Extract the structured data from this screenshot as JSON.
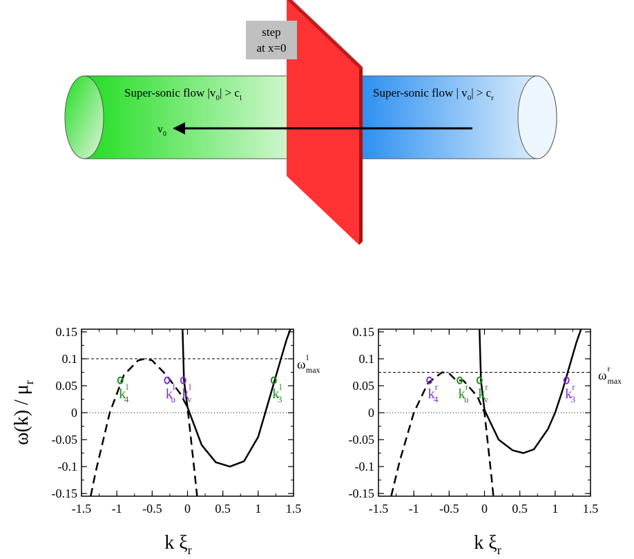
{
  "diagram": {
    "step_label_line1": "step",
    "step_label_line2": "at x=0",
    "left_flow_text": "Super-sonic flow |v",
    "left_flow_sub": "0",
    "left_flow_tail": "| > c",
    "left_flow_tail_sub": "l",
    "right_flow_text": "Super-sonic flow  | v",
    "right_flow_sub": "0",
    "right_flow_tail": "| > c",
    "right_flow_tail_sub": "r",
    "velocity_label": "v",
    "velocity_sub": "0",
    "colors": {
      "left_tube": "#22dd22",
      "right_tube": "#2a8ff0",
      "step": "#ff3333",
      "step_label_bg": "#c0c0c0"
    }
  },
  "chart_data": [
    {
      "type": "line",
      "panel": "left",
      "ylabel": "ω(k) / μ",
      "ylabel_sub": "r",
      "xlabel": "k ξ",
      "xlabel_sub": "r",
      "xlim": [
        -1.5,
        1.5
      ],
      "ylim": [
        -0.155,
        0.155
      ],
      "xticks": [
        "-1.5",
        "-1",
        "-0.5",
        "0",
        "0.5",
        "1",
        "1.5"
      ],
      "yticks": [
        "-0.15",
        "-0.1",
        "-0.05",
        "0",
        "0.05",
        "0.1",
        "0.15"
      ],
      "omega_max": 0.1,
      "omega_max_label": "ω",
      "omega_max_sup": "l",
      "omega_max_sub": "max",
      "omega_line_value": 0.06,
      "series": [
        {
          "style": "solid",
          "x": [
            -0.07,
            -0.05,
            0,
            0.2,
            0.4,
            0.6,
            0.8,
            1.0,
            1.1,
            1.2,
            1.3,
            1.4,
            1.47
          ],
          "y": [
            0.155,
            0.06,
            0.01,
            -0.06,
            -0.092,
            -0.1,
            -0.09,
            -0.045,
            0.0,
            0.045,
            0.09,
            0.135,
            0.16
          ]
        },
        {
          "style": "dashed",
          "x": [
            -1.37,
            -1.3,
            -1.1,
            -0.9,
            -0.7,
            -0.6,
            -0.5,
            -0.3,
            -0.1,
            0.0,
            0.05,
            0.1,
            0.14
          ],
          "y": [
            -0.155,
            -0.11,
            0.0,
            0.07,
            0.097,
            0.1,
            0.097,
            0.07,
            0.035,
            0.01,
            -0.05,
            -0.11,
            -0.16
          ]
        }
      ],
      "points": [
        {
          "x": -0.95,
          "y": 0.06,
          "label": "k",
          "sub": "4",
          "sup": "l",
          "color": "#1e8c1e"
        },
        {
          "x": -0.29,
          "y": 0.06,
          "label": "k",
          "sub": "u",
          "sup": "l",
          "color": "#7d2fd0"
        },
        {
          "x": -0.06,
          "y": 0.06,
          "label": "k",
          "sub": "v",
          "sup": "l",
          "color": "#7d2fd0"
        },
        {
          "x": 1.22,
          "y": 0.06,
          "label": "k",
          "sub": "3",
          "sup": "l",
          "color": "#1e8c1e"
        }
      ]
    },
    {
      "type": "line",
      "panel": "right",
      "xlabel": "k ξ",
      "xlabel_sub": "r",
      "xlim": [
        -1.5,
        1.5
      ],
      "ylim": [
        -0.155,
        0.155
      ],
      "xticks": [
        "-1.5",
        "-1",
        "-0.5",
        "0",
        "0.5",
        "1",
        "1.5"
      ],
      "yticks": [
        "-0.15",
        "-0.1",
        "-0.05",
        "0",
        "0.05",
        "0.1",
        "0.15"
      ],
      "omega_max": 0.075,
      "omega_max_label": "ω",
      "omega_max_sup": "r",
      "omega_max_sub": "max",
      "omega_line_value": 0.06,
      "series": [
        {
          "style": "solid",
          "x": [
            -0.07,
            -0.05,
            0,
            0.2,
            0.4,
            0.55,
            0.7,
            0.9,
            1.0,
            1.1,
            1.2,
            1.3,
            1.38
          ],
          "y": [
            0.155,
            0.06,
            0.005,
            -0.05,
            -0.07,
            -0.075,
            -0.068,
            -0.03,
            0.0,
            0.04,
            0.085,
            0.13,
            0.16
          ]
        },
        {
          "style": "dashed",
          "x": [
            -1.32,
            -1.2,
            -1.0,
            -0.8,
            -0.6,
            -0.5,
            -0.4,
            -0.3,
            -0.1,
            0.0,
            0.05,
            0.1,
            0.13
          ],
          "y": [
            -0.155,
            -0.09,
            0.0,
            0.055,
            0.075,
            0.073,
            0.06,
            0.06,
            0.03,
            0.0,
            -0.06,
            -0.12,
            -0.16
          ]
        }
      ],
      "points": [
        {
          "x": -0.78,
          "y": 0.06,
          "label": "k",
          "sub": "4",
          "sup": "r",
          "color": "#7d2fd0"
        },
        {
          "x": -0.35,
          "y": 0.06,
          "label": "k",
          "sub": "u",
          "sup": "r",
          "color": "#1e8c1e"
        },
        {
          "x": -0.07,
          "y": 0.06,
          "label": "k",
          "sub": "v",
          "sup": "r",
          "color": "#1e8c1e"
        },
        {
          "x": 1.16,
          "y": 0.06,
          "label": "k",
          "sub": "3",
          "sup": "r",
          "color": "#7d2fd0"
        }
      ]
    }
  ]
}
